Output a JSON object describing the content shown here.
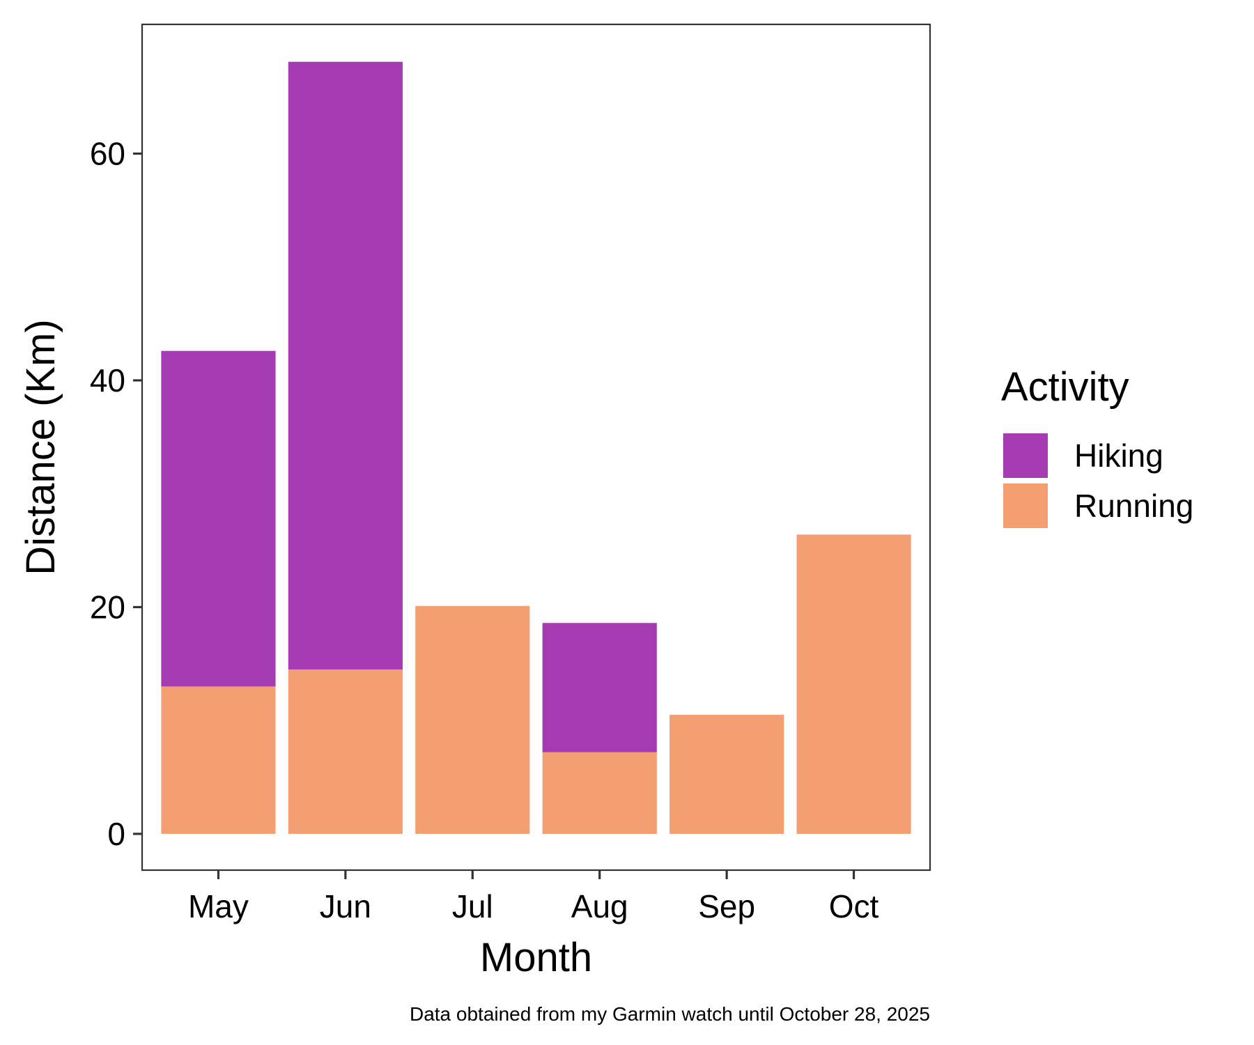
{
  "chart_data": {
    "type": "bar",
    "stacked": true,
    "categories": [
      "May",
      "Jun",
      "Jul",
      "Aug",
      "Sep",
      "Oct"
    ],
    "series": [
      {
        "name": "Running",
        "color": "#F39F71",
        "values": [
          13.0,
          14.5,
          20.1,
          7.2,
          10.5,
          26.4
        ]
      },
      {
        "name": "Hiking",
        "color": "#A43BB3",
        "values": [
          29.6,
          53.6,
          0,
          11.4,
          0,
          0
        ]
      }
    ],
    "xlabel": "Month",
    "ylabel": "Distance (Km)",
    "yticks": [
      0,
      20,
      40,
      60
    ],
    "ylim": [
      -3.2,
      71.4
    ],
    "grid": false,
    "legend": {
      "title": "Activity",
      "placement": "right",
      "entries": [
        "Hiking",
        "Running"
      ]
    },
    "caption": "Data obtained from my Garmin watch until October 28, 2025"
  }
}
